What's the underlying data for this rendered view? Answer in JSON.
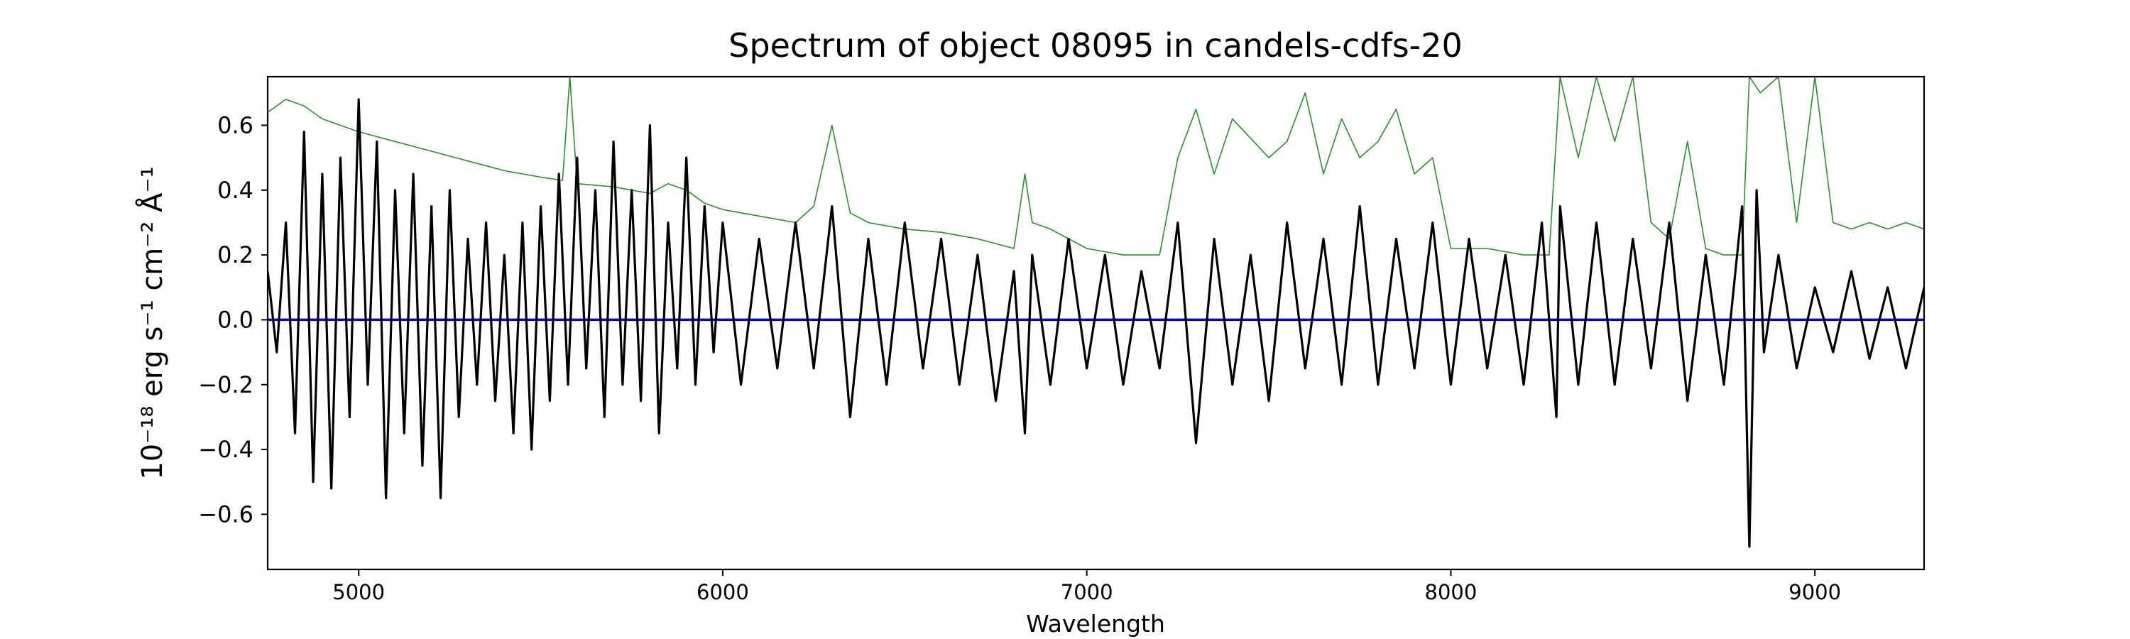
{
  "chart_data": {
    "type": "line",
    "title": "Spectrum of object 08095 in candels-cdfs-20",
    "xlabel": "Wavelength",
    "ylabel": "10⁻¹⁸ erg s⁻¹ cm⁻² Å⁻¹",
    "xlim": [
      4750,
      9300
    ],
    "ylim": [
      -0.77,
      0.75
    ],
    "x_ticks": [
      5000,
      6000,
      7000,
      8000,
      9000
    ],
    "x_tick_labels": [
      "5000",
      "6000",
      "7000",
      "8000",
      "9000"
    ],
    "y_ticks": [
      -0.6,
      -0.4,
      -0.2,
      0.0,
      0.2,
      0.4,
      0.6
    ],
    "y_tick_labels": [
      "−0.6",
      "−0.4",
      "−0.2",
      "0.0",
      "0.2",
      "0.4",
      "0.6"
    ],
    "grid": false,
    "legend": "none",
    "series": [
      {
        "color": "#2e8b2e",
        "style": "thin",
        "x": [
          4750,
          4800,
          4850,
          4900,
          4950,
          5000,
          5100,
          5200,
          5300,
          5400,
          5500,
          5560,
          5580,
          5600,
          5700,
          5800,
          5850,
          5900,
          5950,
          6000,
          6100,
          6200,
          6250,
          6300,
          6350,
          6400,
          6500,
          6600,
          6700,
          6800,
          6830,
          6850,
          6900,
          7000,
          7100,
          7200,
          7250,
          7300,
          7350,
          7400,
          7500,
          7550,
          7600,
          7650,
          7700,
          7750,
          7800,
          7850,
          7900,
          7950,
          8000,
          8100,
          8200,
          8270,
          8300,
          8350,
          8400,
          8450,
          8500,
          8550,
          8600,
          8650,
          8700,
          8750,
          8800,
          8820,
          8850,
          8900,
          8950,
          9000,
          9050,
          9100,
          9150,
          9200,
          9250,
          9300
        ],
        "y": [
          0.64,
          0.68,
          0.66,
          0.62,
          0.6,
          0.58,
          0.55,
          0.52,
          0.49,
          0.46,
          0.44,
          0.43,
          0.75,
          0.42,
          0.41,
          0.39,
          0.42,
          0.4,
          0.36,
          0.34,
          0.32,
          0.3,
          0.35,
          0.6,
          0.33,
          0.3,
          0.28,
          0.27,
          0.25,
          0.22,
          0.45,
          0.3,
          0.28,
          0.22,
          0.2,
          0.2,
          0.5,
          0.65,
          0.45,
          0.62,
          0.5,
          0.55,
          0.7,
          0.45,
          0.62,
          0.5,
          0.55,
          0.65,
          0.45,
          0.5,
          0.22,
          0.22,
          0.2,
          0.2,
          0.75,
          0.5,
          0.75,
          0.55,
          0.75,
          0.3,
          0.25,
          0.55,
          0.22,
          0.2,
          0.2,
          0.75,
          0.7,
          0.75,
          0.3,
          0.75,
          0.3,
          0.28,
          0.3,
          0.28,
          0.3,
          0.28
        ]
      },
      {
        "color": "#0000cc",
        "style": "medium",
        "x": [
          4750,
          9300
        ],
        "y": [
          0.0,
          0.0
        ]
      },
      {
        "color": "#000000",
        "style": "thick",
        "x": [
          4750,
          4775,
          4800,
          4825,
          4850,
          4875,
          4900,
          4925,
          4950,
          4975,
          5000,
          5025,
          5050,
          5075,
          5100,
          5125,
          5150,
          5175,
          5200,
          5225,
          5250,
          5275,
          5300,
          5325,
          5350,
          5375,
          5400,
          5425,
          5450,
          5475,
          5500,
          5525,
          5550,
          5575,
          5600,
          5625,
          5650,
          5675,
          5700,
          5725,
          5750,
          5775,
          5800,
          5825,
          5850,
          5875,
          5900,
          5925,
          5950,
          5975,
          6000,
          6050,
          6100,
          6150,
          6200,
          6250,
          6300,
          6350,
          6400,
          6450,
          6500,
          6550,
          6600,
          6650,
          6700,
          6750,
          6800,
          6830,
          6850,
          6900,
          6950,
          7000,
          7050,
          7100,
          7150,
          7200,
          7250,
          7300,
          7350,
          7400,
          7450,
          7500,
          7550,
          7600,
          7650,
          7700,
          7750,
          7800,
          7850,
          7900,
          7950,
          8000,
          8050,
          8100,
          8150,
          8200,
          8250,
          8290,
          8300,
          8350,
          8400,
          8450,
          8500,
          8550,
          8600,
          8650,
          8700,
          8750,
          8800,
          8820,
          8840,
          8860,
          8900,
          8950,
          9000,
          9050,
          9100,
          9150,
          9200,
          9250,
          9300
        ],
        "y": [
          0.15,
          -0.1,
          0.3,
          -0.35,
          0.58,
          -0.5,
          0.45,
          -0.52,
          0.5,
          -0.3,
          0.68,
          -0.2,
          0.55,
          -0.55,
          0.4,
          -0.35,
          0.45,
          -0.45,
          0.35,
          -0.55,
          0.4,
          -0.3,
          0.25,
          -0.2,
          0.3,
          -0.25,
          0.2,
          -0.35,
          0.3,
          -0.4,
          0.35,
          -0.25,
          0.45,
          -0.2,
          0.5,
          -0.15,
          0.4,
          -0.3,
          0.55,
          -0.2,
          0.4,
          -0.25,
          0.6,
          -0.35,
          0.3,
          -0.15,
          0.5,
          -0.2,
          0.35,
          -0.1,
          0.3,
          -0.2,
          0.25,
          -0.15,
          0.3,
          -0.15,
          0.35,
          -0.3,
          0.25,
          -0.2,
          0.3,
          -0.15,
          0.25,
          -0.2,
          0.2,
          -0.25,
          0.15,
          -0.35,
          0.2,
          -0.2,
          0.25,
          -0.15,
          0.2,
          -0.2,
          0.15,
          -0.15,
          0.3,
          -0.38,
          0.25,
          -0.2,
          0.2,
          -0.25,
          0.3,
          -0.15,
          0.25,
          -0.2,
          0.35,
          -0.2,
          0.25,
          -0.15,
          0.3,
          -0.2,
          0.25,
          -0.15,
          0.2,
          -0.2,
          0.3,
          -0.3,
          0.35,
          -0.2,
          0.3,
          -0.2,
          0.25,
          -0.15,
          0.3,
          -0.25,
          0.2,
          -0.2,
          0.35,
          -0.7,
          0.4,
          -0.1,
          0.2,
          -0.15,
          0.1,
          -0.1,
          0.15,
          -0.12,
          0.1,
          -0.15,
          0.1
        ]
      }
    ]
  }
}
